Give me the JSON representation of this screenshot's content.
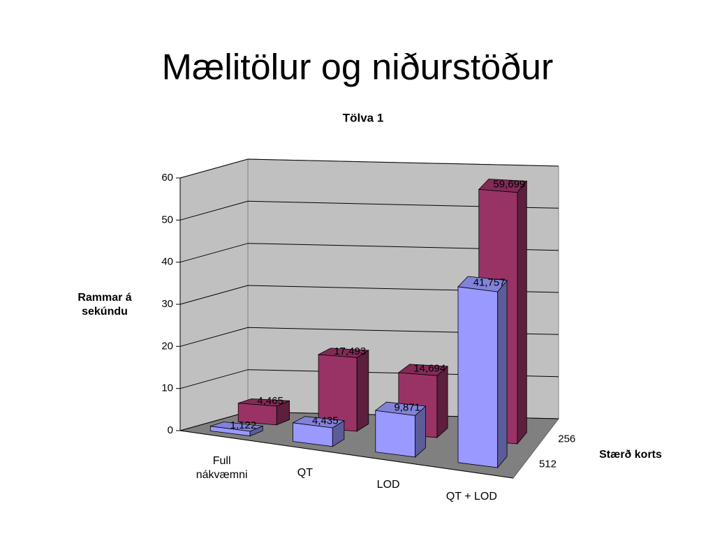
{
  "title": "Mælitölur og niðurstöður",
  "chart_data": {
    "type": "bar3d",
    "title": "Tölva 1",
    "y_label": "Rammar á sekúndu",
    "z_label": "Stærð korts",
    "categories": [
      "Full nákvæmni",
      "QT",
      "LOD",
      "QT + LOD"
    ],
    "series": [
      {
        "name": "256",
        "color": "#993366",
        "values": [
          4.465,
          17.493,
          14.694,
          59.699
        ],
        "value_labels": [
          "4,465",
          "17,493",
          "14,694",
          "59,699"
        ]
      },
      {
        "name": "512",
        "color": "#9999ff",
        "values": [
          1.122,
          4.435,
          9.871,
          41.757
        ],
        "value_labels": [
          "1,122",
          "4,435",
          "9,871",
          "41,757"
        ]
      }
    ],
    "ylim": [
      0,
      60
    ],
    "yticks": [
      0,
      10,
      20,
      30,
      40,
      50,
      60
    ],
    "grid": true
  }
}
